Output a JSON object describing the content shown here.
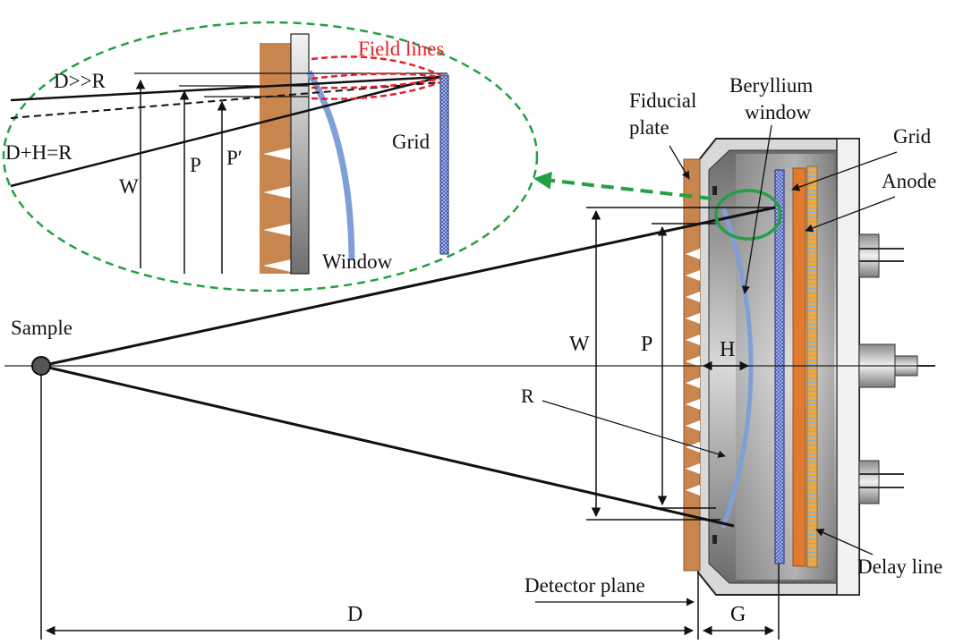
{
  "labels": {
    "sample": "Sample",
    "fiducial_plate_line1": "Fiducial",
    "fiducial_plate_line2": "plate",
    "beryllium_window_line1": "Beryllium",
    "beryllium_window_line2": "window",
    "grid": "Grid",
    "anode": "Anode",
    "delay_line": "Delay line",
    "detector_plane": "Detector plane",
    "W": "W",
    "P": "P",
    "H": "H",
    "R": "R",
    "D": "D",
    "G": "G"
  },
  "inset": {
    "field_lines": "Field lines",
    "d_much_greater_r": "D>>R",
    "d_plus_h_eq_r": "D+H=R",
    "W": "W",
    "P": "P",
    "P_prime": "P′",
    "grid": "Grid",
    "window": "Window"
  },
  "colors": {
    "fiducial_plate": "#c8864e",
    "window": "#7f9fd6",
    "grid": "#3a4fb0",
    "anode": "#e07a2e",
    "delay_line": "#f2a93b",
    "inset_outline": "#2ea84a",
    "field_lines": "#e8202a"
  }
}
